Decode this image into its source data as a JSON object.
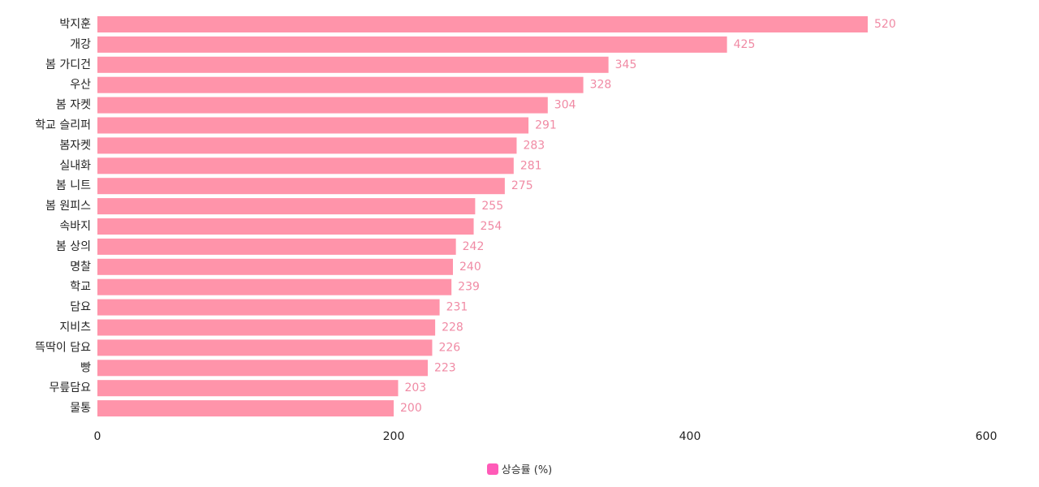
{
  "chart_data": {
    "type": "bar",
    "orientation": "horizontal",
    "categories": [
      "박지훈",
      "개강",
      "봄 가디건",
      "우산",
      "봄 자켓",
      "학교 슬리퍼",
      "봄자켓",
      "실내화",
      "봄 니트",
      "봄 원피스",
      "속바지",
      "봄 상의",
      "명찰",
      "학교",
      "담요",
      "지비츠",
      "뜩딱이 담요",
      "빵",
      "무릎담요",
      "물통"
    ],
    "series": [
      {
        "name": "상승률 (%)",
        "values": [
          520,
          425,
          345,
          328,
          304,
          291,
          283,
          281,
          275,
          255,
          254,
          242,
          240,
          239,
          231,
          228,
          226,
          223,
          203,
          200
        ]
      }
    ],
    "xlim": [
      0,
      600
    ],
    "xticks": [
      "0",
      "200",
      "400",
      "600"
    ],
    "grid": false,
    "legend_position": "bottom-center",
    "colors": {
      "bar": "#ff94aa",
      "value_label": "#f08aa4",
      "legend_swatch": "#ff5bb8"
    }
  },
  "legend": {
    "label": "상승률 (%)"
  }
}
